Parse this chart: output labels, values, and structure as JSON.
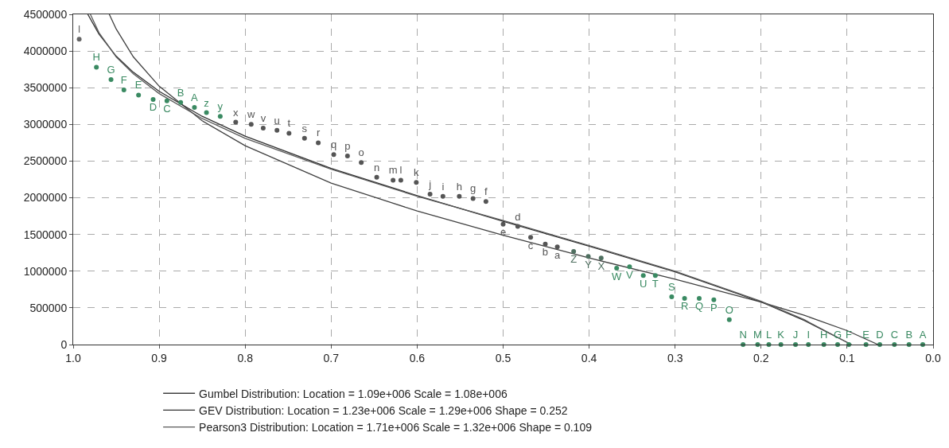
{
  "chart_data": {
    "type": "line",
    "xlim": [
      1.0,
      0.0
    ],
    "xticks": [
      {
        "value": 1.0,
        "label": "1.0"
      },
      {
        "value": 0.9,
        "label": "0.9"
      },
      {
        "value": 0.8,
        "label": "0.8"
      },
      {
        "value": 0.7,
        "label": "0.7"
      },
      {
        "value": 0.6,
        "label": "0.6"
      },
      {
        "value": 0.5,
        "label": "0.5"
      },
      {
        "value": 0.4,
        "label": "0.4"
      },
      {
        "value": 0.3,
        "label": "0.3"
      },
      {
        "value": 0.2,
        "label": "0.2"
      },
      {
        "value": 0.1,
        "label": "0.1"
      },
      {
        "value": 0.0,
        "label": "0.0"
      }
    ],
    "ylim": [
      0,
      4500000
    ],
    "yticks": [
      0,
      500000,
      1000000,
      1500000,
      2000000,
      2500000,
      3000000,
      3500000,
      4000000,
      4500000
    ],
    "grid": true,
    "legend": "bottom",
    "series": [
      {
        "type": "scatter",
        "marker": "circle",
        "x": [
          0.993,
          0.973,
          0.956,
          0.941,
          0.924,
          0.907,
          0.891,
          0.875,
          0.859,
          0.845,
          0.829,
          0.811,
          0.793,
          0.779,
          0.763,
          0.749,
          0.731,
          0.715,
          0.697,
          0.681,
          0.665,
          0.647,
          0.628,
          0.619,
          0.601,
          0.585,
          0.57,
          0.551,
          0.535,
          0.52,
          0.5,
          0.483,
          0.468,
          0.451,
          0.437,
          0.418,
          0.401,
          0.386,
          0.368,
          0.353,
          0.337,
          0.323,
          0.304,
          0.289,
          0.272,
          0.255,
          0.237,
          0.221,
          0.204,
          0.191,
          0.177,
          0.16,
          0.145,
          0.127,
          0.111,
          0.098,
          0.078,
          0.062,
          0.045,
          0.028,
          0.012
        ],
        "values": [
          4160000,
          3780000,
          3610000,
          3470000,
          3400000,
          3340000,
          3320000,
          3300000,
          3230000,
          3160000,
          3110000,
          3030000,
          3000000,
          2950000,
          2920000,
          2880000,
          2810000,
          2750000,
          2590000,
          2570000,
          2480000,
          2280000,
          2240000,
          2240000,
          2210000,
          2050000,
          2020000,
          2020000,
          1990000,
          1950000,
          1640000,
          1610000,
          1460000,
          1370000,
          1330000,
          1270000,
          1200000,
          1180000,
          1040000,
          1060000,
          940000,
          940000,
          650000,
          630000,
          630000,
          610000,
          340000,
          0,
          0,
          0,
          0,
          0,
          0,
          0,
          0,
          0,
          0,
          0,
          0,
          0,
          0
        ],
        "value_labels": [
          "I",
          "H",
          "G",
          "F",
          "E",
          "D",
          "C",
          "B",
          "A",
          "z",
          "y",
          "x",
          "w",
          "v",
          "u",
          "t",
          "s",
          "r",
          "q",
          "p",
          "o",
          "n",
          "m",
          "l",
          "k",
          "j",
          "i",
          "h",
          "g",
          "f",
          "e",
          "d",
          "c",
          "b",
          "a",
          "Z",
          "Y",
          "X",
          "W",
          "V",
          "U",
          "T",
          "S",
          "R",
          "Q",
          "P",
          "O",
          "N",
          "M",
          "L",
          "K",
          "J",
          "I",
          "H",
          "G",
          "F",
          "E",
          "D",
          "C",
          "B",
          "A"
        ],
        "colors": [
          "#666666",
          "#3a8a62",
          "#3a8a62",
          "#3a8a62",
          "#3a8a62",
          "#3a8a62",
          "#3a8a62",
          "#3a8a62",
          "#3a8a62",
          "#3a8a62",
          "#3a8a62",
          "#555555",
          "#555555",
          "#555555",
          "#555555",
          "#555555",
          "#555555",
          "#555555",
          "#555555",
          "#555555",
          "#555555",
          "#555555",
          "#555555",
          "#555555",
          "#555555",
          "#555555",
          "#555555",
          "#555555",
          "#555555",
          "#555555",
          "#555555",
          "#555555",
          "#555555",
          "#555555",
          "#555555",
          "#4f6f60",
          "#4f6f60",
          "#4f6f60",
          "#3a8a62",
          "#3a8a62",
          "#3a8a62",
          "#3a8a62",
          "#3a8a62",
          "#3a8a62",
          "#3a8a62",
          "#3a8a62",
          "#3a8a62",
          "#3a8a62",
          "#3a8a62",
          "#3a8a62",
          "#3a8a62",
          "#3a8a62",
          "#3a8a62",
          "#3a8a62",
          "#3a8a62",
          "#3a8a62",
          "#3a8a62",
          "#3a8a62",
          "#3a8a62",
          "#3a8a62",
          "#3a8a62"
        ]
      },
      {
        "name": "Gumbel Distribution: Location = 1.09e+006 Scale = 1.08e+006",
        "color": "#404040",
        "x": [
          0.958,
          0.95,
          0.93,
          0.9,
          0.85,
          0.8,
          0.7,
          0.6,
          0.5,
          0.4,
          0.3,
          0.2,
          0.15,
          0.1,
          0.064
        ],
        "values": [
          4500000,
          4300000,
          3920000,
          3520000,
          3050000,
          2710000,
          2200000,
          1820000,
          1490000,
          1180000,
          890000,
          580000,
          400000,
          190000,
          0
        ]
      },
      {
        "name": "GEV Distribution: Location = 1.23e+006 Scale = 1.29e+006 Shape = 0.252",
        "color": "#303030",
        "x": [
          0.983,
          0.97,
          0.95,
          0.93,
          0.9,
          0.85,
          0.8,
          0.7,
          0.6,
          0.5,
          0.4,
          0.3,
          0.2,
          0.15,
          0.1,
          0.095
        ],
        "values": [
          4500000,
          4230000,
          3930000,
          3710000,
          3450000,
          3110000,
          2840000,
          2400000,
          2030000,
          1680000,
          1340000,
          990000,
          580000,
          330000,
          30000,
          0
        ]
      },
      {
        "name": "Pearson3 Distribution: Location = 1.71e+006 Scale = 1.32e+006 Shape = 0.109",
        "color": "#5a5a5a",
        "x": [
          0.98,
          0.97,
          0.95,
          0.93,
          0.9,
          0.85,
          0.8,
          0.7,
          0.6,
          0.5,
          0.4,
          0.3,
          0.2,
          0.15,
          0.1,
          0.095
        ],
        "values": [
          4500000,
          4250000,
          3920000,
          3690000,
          3420000,
          3080000,
          2810000,
          2390000,
          2020000,
          1690000,
          1350000,
          1000000,
          590000,
          340000,
          30000,
          0
        ]
      }
    ]
  }
}
